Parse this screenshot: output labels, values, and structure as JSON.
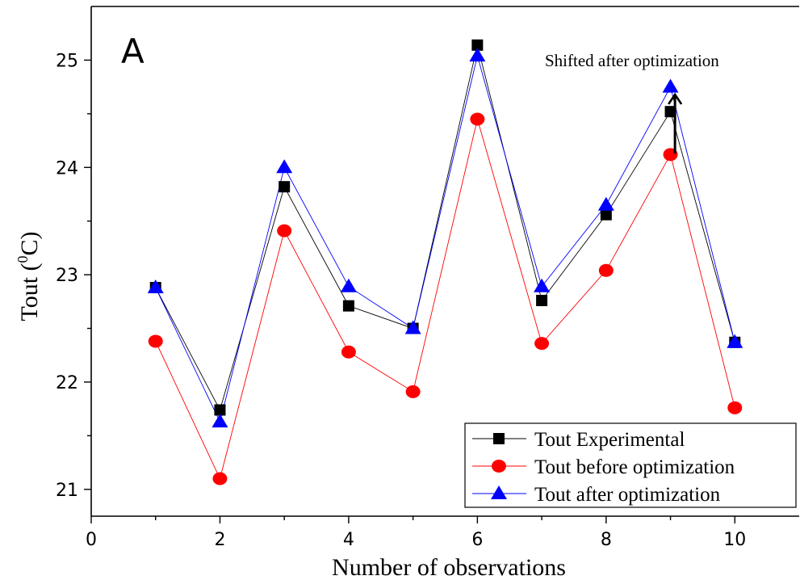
{
  "chart_data": {
    "type": "line",
    "panel_label": "A",
    "xlabel": "Number of observations",
    "ylabel_main": "Tout (",
    "ylabel_sup": "0",
    "ylabel_end": "C)",
    "xlim": [
      0,
      11
    ],
    "ylim": [
      20.75,
      25.5
    ],
    "x_ticks": [
      0,
      2,
      4,
      6,
      8,
      10
    ],
    "x_tick_labels": [
      "0",
      "2",
      "4",
      "6",
      "8",
      "10"
    ],
    "y_ticks": [
      21,
      22,
      23,
      24,
      25
    ],
    "y_tick_labels": [
      "21",
      "22",
      "23",
      "24",
      "25"
    ],
    "x": [
      1,
      2,
      3,
      4,
      5,
      6,
      7,
      8,
      9,
      10
    ],
    "series": [
      {
        "name": "Tout Experimental",
        "marker": "square",
        "color": "#000000",
        "line_color": "#000000",
        "values": [
          22.88,
          21.74,
          23.82,
          22.71,
          22.5,
          25.14,
          22.76,
          23.56,
          24.52,
          22.37
        ]
      },
      {
        "name": "Tout before optimization",
        "marker": "circle",
        "color": "#ff0000",
        "line_color": "#ff0000",
        "values": [
          22.38,
          21.1,
          23.41,
          22.28,
          21.91,
          24.45,
          22.36,
          23.04,
          24.12,
          21.76
        ]
      },
      {
        "name": "Tout after optimization",
        "marker": "triangle",
        "color": "#0000ff",
        "line_color": "#0000ff",
        "values": [
          22.88,
          21.63,
          24.0,
          22.89,
          22.5,
          25.04,
          22.89,
          23.65,
          24.75,
          22.37
        ]
      }
    ],
    "annotation": {
      "text": "Shifted after optimization",
      "arrow_x": 9.07,
      "arrow_from": 24.13,
      "arrow_to": 24.68
    },
    "legend_placement": "bottom-right"
  }
}
